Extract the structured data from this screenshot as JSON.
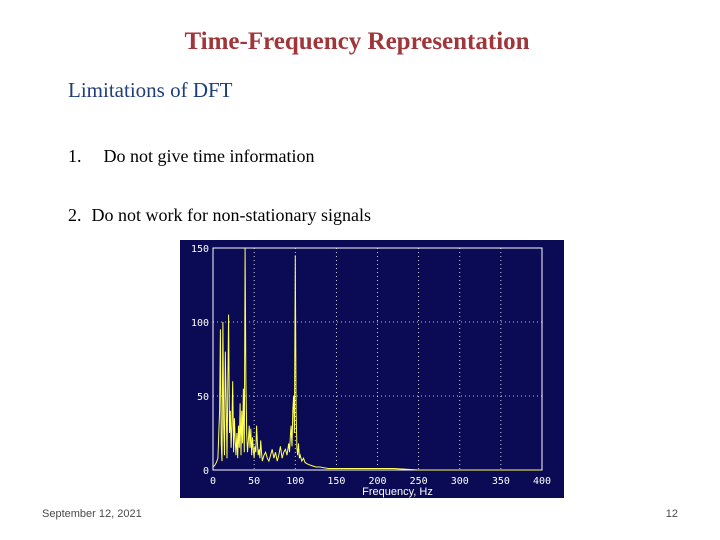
{
  "slide": {
    "title": "Time-Frequency Representation",
    "subtitle": "Limitations of DFT",
    "items": [
      {
        "num": "1.",
        "text": "Do not give time information"
      },
      {
        "num": "2.",
        "text": "Do not work for non-stationary signals"
      }
    ],
    "footer": {
      "date": "September 12, 2021",
      "page": "12"
    }
  },
  "chart_data": {
    "type": "line",
    "xlabel": "Frequency, Hz",
    "ylabel": "",
    "xlim": [
      0,
      400
    ],
    "ylim": [
      0,
      150
    ],
    "x_ticks": [
      "0",
      "50",
      "100",
      "150",
      "200",
      "250",
      "300",
      "350",
      "400"
    ],
    "y_ticks": [
      "0",
      "50",
      "100",
      "150"
    ],
    "grid": true,
    "colors": {
      "background": "#0a0a55",
      "line": "#ffff55",
      "text": "#ffffff",
      "grid": "#ffffff"
    },
    "series": [
      {
        "x": [
          0,
          2,
          4,
          6,
          8,
          9,
          10,
          11,
          12,
          13,
          14,
          15,
          16,
          17,
          18,
          19,
          20,
          21,
          22,
          23,
          24,
          25,
          26,
          27,
          28,
          29,
          30,
          31,
          32,
          33,
          34,
          35,
          36,
          37,
          38,
          39,
          40,
          41,
          42,
          43,
          44,
          45,
          46,
          47,
          48,
          49,
          50,
          51,
          52,
          53,
          54,
          55,
          56,
          57,
          58,
          59,
          60,
          62,
          64,
          66,
          68,
          70,
          72,
          74,
          76,
          78,
          80,
          82,
          84,
          86,
          88,
          90,
          92,
          93,
          94,
          95,
          96,
          97,
          98,
          99,
          100,
          101,
          102,
          103,
          104,
          105,
          106,
          108,
          110,
          112,
          115,
          120,
          125,
          130,
          140,
          150,
          160,
          180,
          200,
          220,
          250,
          280,
          300,
          350,
          400
        ],
        "y": [
          2,
          3,
          5,
          8,
          40,
          95,
          18,
          6,
          100,
          30,
          10,
          80,
          45,
          8,
          55,
          105,
          25,
          40,
          15,
          30,
          60,
          12,
          35,
          20,
          10,
          25,
          8,
          30,
          15,
          45,
          10,
          40,
          18,
          55,
          12,
          150,
          60,
          25,
          12,
          20,
          30,
          15,
          28,
          10,
          22,
          14,
          8,
          16,
          12,
          30,
          18,
          10,
          14,
          8,
          20,
          12,
          6,
          10,
          12,
          8,
          6,
          10,
          14,
          8,
          12,
          6,
          10,
          16,
          8,
          12,
          14,
          10,
          18,
          12,
          22,
          30,
          16,
          40,
          50,
          25,
          145,
          40,
          15,
          10,
          18,
          8,
          10,
          6,
          8,
          5,
          4,
          3,
          2,
          2,
          1,
          1,
          1,
          1,
          1,
          1,
          0,
          0,
          0,
          0,
          0
        ]
      }
    ]
  }
}
